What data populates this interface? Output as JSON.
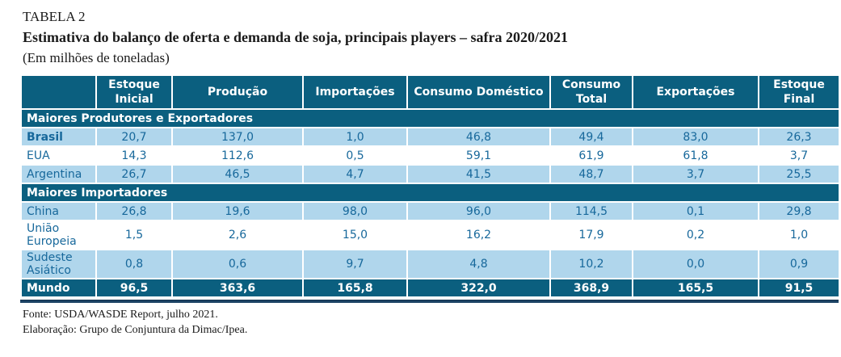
{
  "title": {
    "label": "TABELA 2",
    "heading": "Estimativa do balanço de oferta e demanda de soja, principais players – safra 2020/2021",
    "unit": "(Em milhões de toneladas)"
  },
  "table": {
    "columns": [
      "",
      "Estoque Inicial",
      "Produção",
      "Importações",
      "Consumo Doméstico",
      "Consumo Total",
      "Exportações",
      "Estoque Final"
    ],
    "sections": [
      {
        "label": "Maiores Produtores e Exportadores",
        "rows": [
          {
            "name": "Brasil",
            "bold": true,
            "values": [
              "20,7",
              "137,0",
              "1,0",
              "46,8",
              "49,4",
              "83,0",
              "26,3"
            ]
          },
          {
            "name": "EUA",
            "bold": false,
            "values": [
              "14,3",
              "112,6",
              "0,5",
              "59,1",
              "61,9",
              "61,8",
              "3,7"
            ]
          },
          {
            "name": "Argentina",
            "bold": false,
            "values": [
              "26,7",
              "46,5",
              "4,7",
              "41,5",
              "48,7",
              "3,7",
              "25,5"
            ]
          }
        ]
      },
      {
        "label": "Maiores Importadores",
        "rows": [
          {
            "name": "China",
            "bold": false,
            "values": [
              "26,8",
              "19,6",
              "98,0",
              "96,0",
              "114,5",
              "0,1",
              "29,8"
            ]
          },
          {
            "name": "União Europeia",
            "bold": false,
            "values": [
              "1,5",
              "2,6",
              "15,0",
              "16,2",
              "17,9",
              "0,2",
              "1,0"
            ]
          },
          {
            "name": "Sudeste Asiático",
            "bold": false,
            "values": [
              "0,8",
              "0,6",
              "9,7",
              "4,8",
              "10,2",
              "0,0",
              "0,9"
            ]
          }
        ]
      }
    ],
    "total_row": {
      "name": "Mundo",
      "values": [
        "96,5",
        "363,6",
        "165,8",
        "322,0",
        "368,9",
        "165,5",
        "91,5"
      ]
    }
  },
  "footer": {
    "source": "Fonte: USDA/WASDE Report, julho 2021.",
    "elaboration": "Elaboração: Grupo de Conjuntura da Dimac/Ipea."
  },
  "colors": {
    "header_bg": "#0b5f7f",
    "row_alt_bg": "#b0d6ec",
    "data_text": "#17689b",
    "bottom_rule": "#1d4465"
  }
}
